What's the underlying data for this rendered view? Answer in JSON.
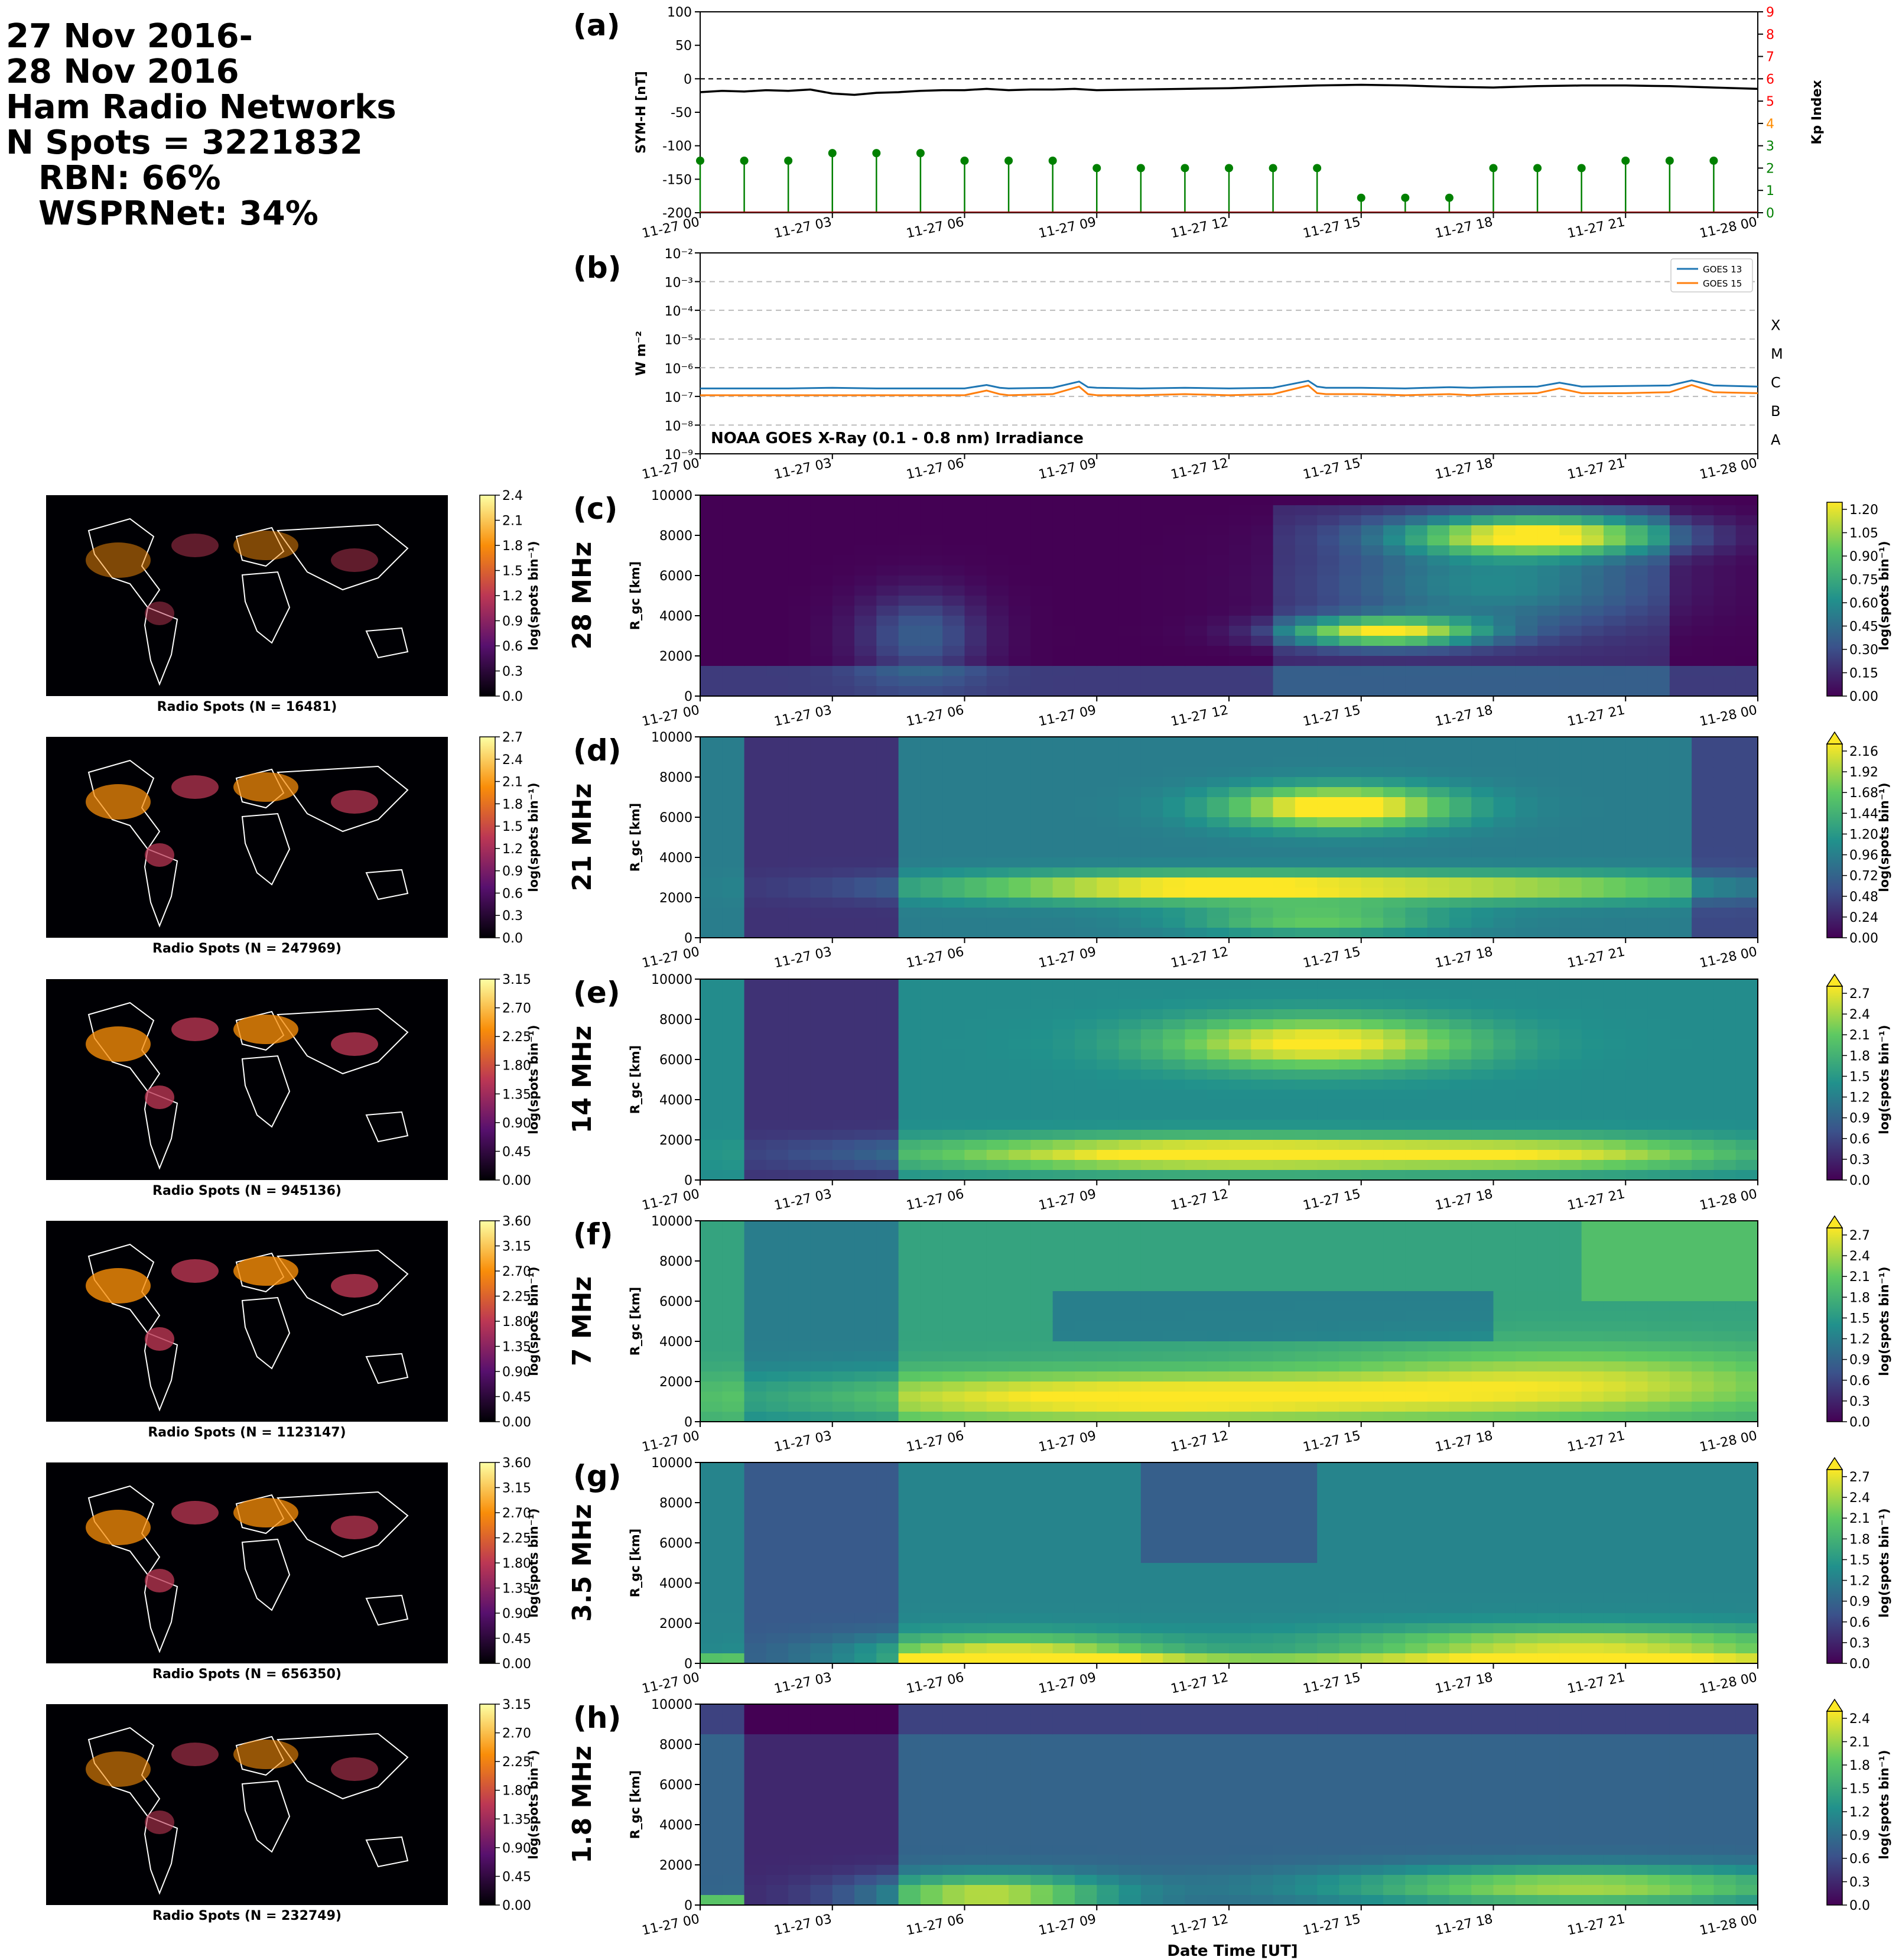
{
  "header": {
    "lines": [
      "27 Nov 2016-",
      "28 Nov 2016",
      "Ham Radio Networks",
      "N Spots = 3221832",
      "RBN: 66%",
      "WSPRNet: 34%"
    ]
  },
  "time_ticks": [
    "11-27 00",
    "11-27 03",
    "11-27 06",
    "11-27 09",
    "11-27 12",
    "11-27 15",
    "11-27 18",
    "11-27 21",
    "11-28 00"
  ],
  "xlabel": "Date Time [UT]",
  "chart_data": [
    {
      "type": "line",
      "panel": "(a)",
      "ylabel": "SYM-H [nT]",
      "ylim": [
        -200,
        100
      ],
      "yticks": [
        "100",
        "50",
        "0",
        "-50",
        "-100",
        "-150",
        "-200"
      ],
      "xlim_hours": [
        0,
        24
      ],
      "zero_line": "dashed",
      "series": [
        {
          "color": "#000000",
          "x_hours": [
            0,
            0.5,
            1,
            1.5,
            2,
            2.5,
            3,
            3.5,
            4,
            4.5,
            5,
            5.5,
            6,
            6.5,
            7,
            7.5,
            8,
            8.5,
            9,
            10,
            11,
            12,
            13,
            14,
            15,
            16,
            17,
            18,
            19,
            20,
            21,
            22,
            23,
            23.5,
            24
          ],
          "values": [
            -20,
            -18,
            -19,
            -17,
            -18,
            -16,
            -22,
            -24,
            -21,
            -20,
            -18,
            -17,
            -17,
            -15,
            -17,
            -16,
            -16,
            -15,
            -17,
            -16,
            -15,
            -14,
            -12,
            -10,
            -9,
            -10,
            -12,
            -13,
            -11,
            -10,
            -10,
            -11,
            -13,
            -14,
            -15
          ]
        }
      ],
      "secondary_axis": {
        "label": "Kp Index",
        "ylim": [
          0,
          9
        ],
        "ticks": [
          "0",
          "1",
          "2",
          "3",
          "4",
          "5",
          "6",
          "7",
          "8",
          "9"
        ],
        "tick_colors": [
          "#008000",
          "#008000",
          "#008000",
          "#008000",
          "#ff8c00",
          "#ff0000",
          "#ff0000",
          "#ff0000",
          "#ff0000",
          "#ff0000"
        ]
      },
      "kp_stems": {
        "color": "#008000",
        "x_hours": [
          0,
          1,
          2,
          3,
          4,
          5,
          6,
          7,
          8,
          9,
          10,
          11,
          12,
          13,
          14,
          15,
          16,
          17,
          18,
          19,
          20,
          21,
          22,
          23
        ],
        "values": [
          2.33,
          2.33,
          2.33,
          2.67,
          2.67,
          2.67,
          2.33,
          2.33,
          2.33,
          2.0,
          2.0,
          2.0,
          2.0,
          2.0,
          2.0,
          0.67,
          0.67,
          0.67,
          2.0,
          2.0,
          2.0,
          2.33,
          2.33,
          2.33
        ]
      }
    },
    {
      "type": "line",
      "panel": "(b)",
      "ylabel": "W m⁻²",
      "scale": "log",
      "ylim": [
        1e-09,
        0.01
      ],
      "yticks": [
        "10⁻²",
        "10⁻³",
        "10⁻⁴",
        "10⁻⁵",
        "10⁻⁶",
        "10⁻⁷",
        "10⁻⁸",
        "10⁻⁹"
      ],
      "flare_classes": [
        "X",
        "M",
        "C",
        "B",
        "A"
      ],
      "annotation": "NOAA GOES X-Ray (0.1 - 0.8 nm) Irradiance",
      "legend": "top-right",
      "series": [
        {
          "name": "GOES 13",
          "color": "#1f77b4",
          "x_hours": [
            0,
            1,
            2,
            3,
            4,
            5,
            6,
            6.5,
            6.8,
            7,
            8,
            8.6,
            8.8,
            9,
            10,
            11,
            12,
            13,
            13.8,
            14,
            14.2,
            15,
            16,
            17,
            17.5,
            18,
            19,
            19.5,
            20,
            21,
            22,
            22.5,
            23,
            24
          ],
          "values": [
            1.9e-07,
            1.9e-07,
            1.9e-07,
            2e-07,
            1.9e-07,
            1.9e-07,
            1.9e-07,
            2.5e-07,
            2e-07,
            1.9e-07,
            2e-07,
            3.3e-07,
            2.1e-07,
            2e-07,
            1.9e-07,
            2e-07,
            1.9e-07,
            2e-07,
            3.5e-07,
            2.2e-07,
            2e-07,
            2e-07,
            1.9e-07,
            2.1e-07,
            2e-07,
            2.1e-07,
            2.2e-07,
            3e-07,
            2.2e-07,
            2.3e-07,
            2.4e-07,
            3.6e-07,
            2.4e-07,
            2.2e-07
          ]
        },
        {
          "name": "GOES 15",
          "color": "#ff7f0e",
          "x_hours": [
            0,
            1,
            2,
            3,
            4,
            5,
            6,
            6.5,
            6.8,
            7,
            8,
            8.6,
            8.8,
            9,
            10,
            11,
            12,
            13,
            13.8,
            14,
            14.2,
            15,
            16,
            17,
            17.5,
            18,
            19,
            19.5,
            20,
            21,
            22,
            22.5,
            23,
            24
          ],
          "values": [
            1.1e-07,
            1.1e-07,
            1.1e-07,
            1.1e-07,
            1.1e-07,
            1.1e-07,
            1.1e-07,
            1.6e-07,
            1.2e-07,
            1.1e-07,
            1.2e-07,
            2.2e-07,
            1.2e-07,
            1.1e-07,
            1.1e-07,
            1.2e-07,
            1.1e-07,
            1.2e-07,
            2.4e-07,
            1.3e-07,
            1.2e-07,
            1.2e-07,
            1.1e-07,
            1.2e-07,
            1.1e-07,
            1.2e-07,
            1.3e-07,
            1.9e-07,
            1.3e-07,
            1.3e-07,
            1.4e-07,
            2.5e-07,
            1.4e-07,
            1.3e-07
          ]
        }
      ]
    },
    {
      "type": "heatmap",
      "panels": [
        {
          "letter": "(c)",
          "band": "28 MHz",
          "map_caption": "Radio Spots (N = 16481)",
          "map_cbar_ticks": [
            "0.0",
            "0.3",
            "0.6",
            "0.9",
            "1.2",
            "1.5",
            "1.8",
            "2.1",
            "2.4"
          ],
          "cbar_ticks": [
            "0.00",
            "0.15",
            "0.30",
            "0.45",
            "0.60",
            "0.75",
            "0.90",
            "1.05",
            "1.20"
          ]
        },
        {
          "letter": "(d)",
          "band": "21 MHz",
          "map_caption": "Radio Spots (N = 247969)",
          "map_cbar_ticks": [
            "0.0",
            "0.3",
            "0.6",
            "0.9",
            "1.2",
            "1.5",
            "1.8",
            "2.1",
            "2.4",
            "2.7"
          ],
          "cbar_ticks": [
            "0.00",
            "0.24",
            "0.48",
            "0.72",
            "0.96",
            "1.20",
            "1.44",
            "1.68",
            "1.92",
            "2.16"
          ]
        },
        {
          "letter": "(e)",
          "band": "14 MHz",
          "map_caption": "Radio Spots (N = 945136)",
          "map_cbar_ticks": [
            "0.00",
            "0.45",
            "0.90",
            "1.35",
            "1.80",
            "2.25",
            "2.70",
            "3.15"
          ],
          "cbar_ticks": [
            "0.0",
            "0.3",
            "0.6",
            "0.9",
            "1.2",
            "1.5",
            "1.8",
            "2.1",
            "2.4",
            "2.7"
          ]
        },
        {
          "letter": "(f)",
          "band": "7 MHz",
          "map_caption": "Radio Spots (N = 1123147)",
          "map_cbar_ticks": [
            "0.00",
            "0.45",
            "0.90",
            "1.35",
            "1.80",
            "2.25",
            "2.70",
            "3.15",
            "3.60"
          ],
          "cbar_ticks": [
            "0.0",
            "0.3",
            "0.6",
            "0.9",
            "1.2",
            "1.5",
            "1.8",
            "2.1",
            "2.4",
            "2.7"
          ]
        },
        {
          "letter": "(g)",
          "band": "3.5 MHz",
          "map_caption": "Radio Spots (N = 656350)",
          "map_cbar_ticks": [
            "0.00",
            "0.45",
            "0.90",
            "1.35",
            "1.80",
            "2.25",
            "2.70",
            "3.15",
            "3.60"
          ],
          "cbar_ticks": [
            "0.0",
            "0.3",
            "0.6",
            "0.9",
            "1.2",
            "1.5",
            "1.8",
            "2.1",
            "2.4",
            "2.7"
          ]
        },
        {
          "letter": "(h)",
          "band": "1.8 MHz",
          "map_caption": "Radio Spots (N = 232749)",
          "map_cbar_ticks": [
            "0.00",
            "0.45",
            "0.90",
            "1.35",
            "1.80",
            "2.25",
            "2.70",
            "3.15"
          ],
          "cbar_ticks": [
            "0.0",
            "0.3",
            "0.6",
            "0.9",
            "1.2",
            "1.5",
            "1.8",
            "2.1",
            "2.4"
          ]
        }
      ],
      "ylabel": "R_gc [km]",
      "yticks": [
        "0",
        "2000",
        "4000",
        "6000",
        "8000",
        "10000"
      ],
      "ylim": [
        0,
        10000
      ],
      "cbar_label": "log(spots bin⁻¹)",
      "map_cbar_label": "log(spots bin⁻¹)",
      "colormaps": {
        "time_distance": "viridis",
        "map": "inferno"
      }
    }
  ]
}
